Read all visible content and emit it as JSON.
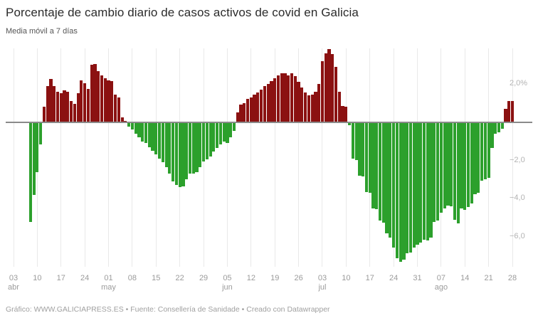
{
  "header": {
    "title": "Porcentaje de cambio diario de casos activos de covid en Galicia",
    "subtitle": "Media móvil a 7 días"
  },
  "footer": {
    "text": "Gráfico: WWW.GALICIAPRESS.ES • Fuente: Consellería de Sanidade • Creado con Datawrapper"
  },
  "colors": {
    "positive_bar": "#8b1111",
    "negative_bar": "#2ca02c",
    "baseline": "#8a8a8a",
    "gridline": "#e9e9e9",
    "axis_text": "#9b9b9b"
  },
  "chart_data": {
    "type": "bar",
    "title": "Porcentaje de cambio diario de casos activos de covid en Galicia",
    "subtitle": "Media móvil a 7 días",
    "xlabel": "",
    "ylabel": "",
    "y_unit": "%",
    "ylim": [
      -7.6,
      4.2
    ],
    "grid": "vertical-only",
    "legend": "none",
    "series_note": "daily values, first bar = 08 abr, last bar = 28 ago",
    "y_ticks": [
      {
        "value": 2,
        "label": "2,0%"
      },
      {
        "value": -2,
        "label": "−2,0"
      },
      {
        "value": -4,
        "label": "−4,0"
      },
      {
        "value": -6,
        "label": "−6,0"
      }
    ],
    "x_ticks": [
      {
        "day_index": -5,
        "label": "03",
        "month": "abr"
      },
      {
        "day_index": 2,
        "label": "10"
      },
      {
        "day_index": 9,
        "label": "17"
      },
      {
        "day_index": 16,
        "label": "24"
      },
      {
        "day_index": 23,
        "label": "01",
        "month": "may"
      },
      {
        "day_index": 30,
        "label": "08"
      },
      {
        "day_index": 37,
        "label": "15"
      },
      {
        "day_index": 44,
        "label": "22"
      },
      {
        "day_index": 51,
        "label": "29"
      },
      {
        "day_index": 58,
        "label": "05",
        "month": "jun"
      },
      {
        "day_index": 65,
        "label": "12"
      },
      {
        "day_index": 72,
        "label": "19"
      },
      {
        "day_index": 79,
        "label": "26"
      },
      {
        "day_index": 86,
        "label": "03",
        "month": "jul"
      },
      {
        "day_index": 93,
        "label": "10"
      },
      {
        "day_index": 100,
        "label": "17"
      },
      {
        "day_index": 107,
        "label": "24"
      },
      {
        "day_index": 114,
        "label": "31"
      },
      {
        "day_index": 121,
        "label": "07",
        "month": "ago"
      },
      {
        "day_index": 128,
        "label": "14"
      },
      {
        "day_index": 135,
        "label": "21"
      },
      {
        "day_index": 142,
        "label": "28"
      }
    ],
    "values": [
      -5.2,
      -3.8,
      -2.6,
      -1.15,
      0.8,
      1.9,
      2.25,
      1.9,
      1.6,
      1.5,
      1.65,
      1.6,
      1.1,
      0.95,
      1.5,
      2.2,
      2.05,
      1.75,
      3.0,
      3.05,
      2.65,
      2.45,
      2.3,
      2.2,
      2.15,
      1.45,
      1.3,
      0.25,
      0.05,
      -0.25,
      -0.4,
      -0.6,
      -0.8,
      -1.0,
      -1.1,
      -1.3,
      -1.5,
      -1.7,
      -1.9,
      -2.1,
      -2.35,
      -2.7,
      -3.1,
      -3.3,
      -3.4,
      -3.35,
      -3.0,
      -2.7,
      -2.7,
      -2.6,
      -2.35,
      -2.05,
      -1.95,
      -1.8,
      -1.55,
      -1.35,
      -1.15,
      -1.0,
      -1.1,
      -0.8,
      -0.45,
      0.5,
      0.9,
      1.0,
      1.2,
      1.3,
      1.45,
      1.55,
      1.7,
      1.9,
      2.0,
      2.15,
      2.3,
      2.45,
      2.55,
      2.55,
      2.45,
      2.55,
      2.4,
      2.1,
      1.8,
      1.55,
      1.4,
      1.45,
      1.6,
      2.0,
      3.2,
      3.6,
      3.8,
      3.55,
      2.9,
      1.6,
      0.85,
      0.8,
      -0.15,
      -1.9,
      -2.0,
      -2.8,
      -2.85,
      -3.65,
      -3.7,
      -4.5,
      -4.55,
      -5.15,
      -5.25,
      -5.8,
      -6.05,
      -6.55,
      -7.1,
      -7.3,
      -7.2,
      -6.85,
      -6.8,
      -6.55,
      -6.4,
      -6.3,
      -6.15,
      -6.2,
      -6.05,
      -5.2,
      -5.15,
      -4.75,
      -4.5,
      -4.35,
      -4.4,
      -5.1,
      -5.3,
      -4.5,
      -4.6,
      -4.45,
      -4.25,
      -3.75,
      -3.7,
      -3.05,
      -3.0,
      -2.9,
      -1.35,
      -0.6,
      -0.55,
      -0.35,
      0.7,
      1.1,
      1.1
    ]
  }
}
